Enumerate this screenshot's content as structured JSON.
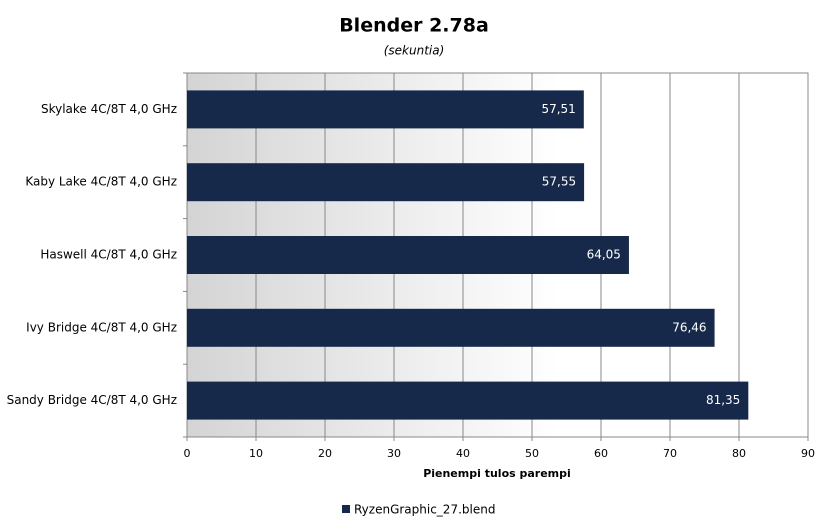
{
  "chart_data": {
    "type": "bar",
    "orientation": "horizontal",
    "title": "Blender 2.78a",
    "subtitle": "(sekuntia)",
    "x_label": "Pienempi tulos parempi",
    "categories": [
      "Skylake 4C/8T 4,0 GHz",
      "Kaby Lake 4C/8T 4,0 GHz",
      "Haswell 4C/8T 4,0 GHz",
      "Ivy Bridge 4C/8T 4,0 GHz",
      "Sandy Bridge 4C/8T 4,0 GHz"
    ],
    "series": [
      {
        "name": "RyzenGraphic_27.blend",
        "color": "#17294a",
        "values": [
          57.51,
          57.55,
          64.05,
          76.46,
          81.35
        ],
        "value_labels": [
          "57,51",
          "57,55",
          "64,05",
          "76,46",
          "81,35"
        ]
      }
    ],
    "xlim": [
      0,
      90
    ],
    "xticks": [
      0,
      10,
      20,
      30,
      40,
      50,
      60,
      70,
      80,
      90
    ],
    "grid": true,
    "legend": "bottom"
  }
}
